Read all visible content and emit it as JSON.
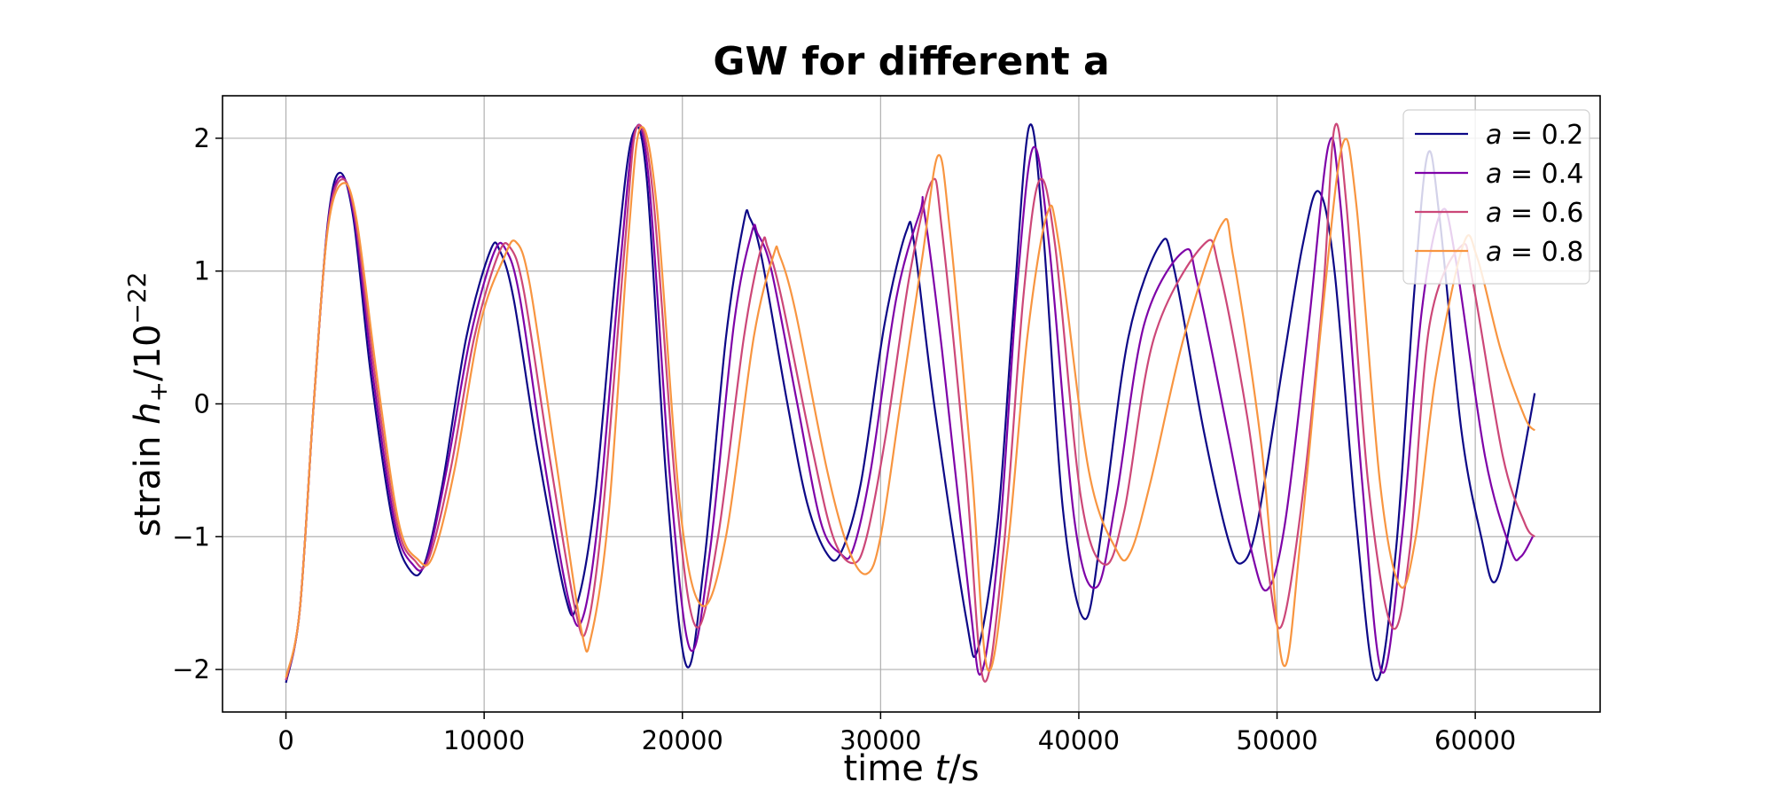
{
  "chart_data": {
    "type": "line",
    "title": "GW for different a",
    "xlabel_prefix": "time ",
    "xlabel_var": "t",
    "xlabel_suffix": "/s",
    "ylabel_prefix": "strain ",
    "ylabel_var": "h",
    "ylabel_sub": "+",
    "ylabel_suffix": "/10",
    "ylabel_exp": "−22",
    "xlim": [
      -3200,
      66300
    ],
    "ylim": [
      -2.32,
      2.32
    ],
    "xticks": [
      0,
      10000,
      20000,
      30000,
      40000,
      50000,
      60000
    ],
    "yticks": [
      2,
      1,
      0,
      -1,
      -2
    ],
    "ytick_labels": [
      "2",
      "1",
      "0",
      "−1",
      "−2"
    ],
    "grid": true,
    "legend_position": "top-right",
    "series": [
      {
        "legend_var": "a",
        "legend_value": "= 0.2",
        "color": "#0d0887",
        "points": [
          [
            0,
            -2.1
          ],
          [
            700,
            -1.55
          ],
          [
            1400,
            0
          ],
          [
            2100,
            1.35
          ],
          [
            2700,
            1.74
          ],
          [
            3400,
            1.4
          ],
          [
            4300,
            0.2
          ],
          [
            5400,
            -0.9
          ],
          [
            6300,
            -1.26
          ],
          [
            7000,
            -1.2
          ],
          [
            7900,
            -0.6
          ],
          [
            9100,
            0.5
          ],
          [
            10300,
            1.15
          ],
          [
            10800,
            1.15
          ],
          [
            11500,
            0.78
          ],
          [
            12700,
            -0.35
          ],
          [
            14100,
            -1.45
          ],
          [
            14700,
            -1.5
          ],
          [
            15600,
            -0.7
          ],
          [
            16700,
            1.1
          ],
          [
            17500,
            2.03
          ],
          [
            18200,
            1.7
          ],
          [
            19200,
            -0.6
          ],
          [
            20200,
            -1.97
          ],
          [
            21100,
            -1.2
          ],
          [
            22200,
            0.5
          ],
          [
            23100,
            1.37
          ],
          [
            23400,
            1.4
          ],
          [
            24000,
            1.1
          ],
          [
            25300,
            0.0
          ],
          [
            26300,
            -0.75
          ],
          [
            27300,
            -1.13
          ],
          [
            28000,
            -1.12
          ],
          [
            29000,
            -0.6
          ],
          [
            30200,
            0.6
          ],
          [
            31300,
            1.3
          ],
          [
            31700,
            1.2
          ],
          [
            32700,
            0.0
          ],
          [
            34300,
            -1.6
          ],
          [
            34900,
            -1.85
          ],
          [
            35900,
            -0.9
          ],
          [
            36700,
            0.7
          ],
          [
            37500,
            2.09
          ],
          [
            38200,
            1.3
          ],
          [
            39200,
            -0.8
          ],
          [
            40300,
            -1.62
          ],
          [
            41200,
            -0.9
          ],
          [
            42500,
            0.5
          ],
          [
            44100,
            1.2
          ],
          [
            44800,
            1.02
          ],
          [
            46300,
            -0.2
          ],
          [
            47500,
            -1.0
          ],
          [
            48200,
            -1.2
          ],
          [
            49000,
            -0.9
          ],
          [
            50300,
            0.3
          ],
          [
            51300,
            1.2
          ],
          [
            52100,
            1.6
          ],
          [
            52900,
            1.0
          ],
          [
            54000,
            -0.9
          ],
          [
            55000,
            -2.08
          ],
          [
            56000,
            -1.1
          ],
          [
            56900,
            0.8
          ],
          [
            57600,
            1.88
          ],
          [
            58200,
            1.4
          ],
          [
            59300,
            -0.2
          ],
          [
            60300,
            -1.0
          ],
          [
            61000,
            -1.34
          ],
          [
            61900,
            -0.8
          ],
          [
            63000,
            0.08
          ]
        ]
      },
      {
        "legend_var": "a",
        "legend_value": "= 0.4",
        "color": "#7e03a8",
        "points": [
          [
            0,
            -2.08
          ],
          [
            700,
            -1.55
          ],
          [
            1400,
            0
          ],
          [
            2100,
            1.33
          ],
          [
            2750,
            1.71
          ],
          [
            3450,
            1.4
          ],
          [
            4400,
            0.2
          ],
          [
            5500,
            -0.9
          ],
          [
            6400,
            -1.21
          ],
          [
            7100,
            -1.18
          ],
          [
            8100,
            -0.5
          ],
          [
            9300,
            0.5
          ],
          [
            10500,
            1.14
          ],
          [
            11100,
            1.16
          ],
          [
            11800,
            0.8
          ],
          [
            13000,
            -0.4
          ],
          [
            14300,
            -1.5
          ],
          [
            15000,
            -1.6
          ],
          [
            15800,
            -0.8
          ],
          [
            16900,
            1.1
          ],
          [
            17600,
            2.05
          ],
          [
            18300,
            1.7
          ],
          [
            19400,
            -0.6
          ],
          [
            20400,
            -1.85
          ],
          [
            21400,
            -1.1
          ],
          [
            22600,
            0.6
          ],
          [
            23500,
            1.29
          ],
          [
            23800,
            1.28
          ],
          [
            24500,
            1.0
          ],
          [
            25800,
            0.0
          ],
          [
            27000,
            -0.9
          ],
          [
            28000,
            -1.13
          ],
          [
            28600,
            -1.1
          ],
          [
            29500,
            -0.5
          ],
          [
            30800,
            0.8
          ],
          [
            32000,
            1.45
          ],
          [
            32200,
            1.45
          ],
          [
            33100,
            0.4
          ],
          [
            34500,
            -1.5
          ],
          [
            35100,
            -2.02
          ],
          [
            36000,
            -1.0
          ],
          [
            36900,
            0.9
          ],
          [
            37700,
            1.93
          ],
          [
            38500,
            1.2
          ],
          [
            39800,
            -0.9
          ],
          [
            40900,
            -1.38
          ],
          [
            41900,
            -0.7
          ],
          [
            43300,
            0.6
          ],
          [
            45300,
            1.15
          ],
          [
            46000,
            0.9
          ],
          [
            47500,
            -0.2
          ],
          [
            48700,
            -1.1
          ],
          [
            49500,
            -1.4
          ],
          [
            50400,
            -0.9
          ],
          [
            51600,
            0.6
          ],
          [
            52600,
            1.95
          ],
          [
            53200,
            1.5
          ],
          [
            54300,
            -0.6
          ],
          [
            55300,
            -2.02
          ],
          [
            56300,
            -1.0
          ],
          [
            57300,
            0.7
          ],
          [
            58300,
            1.45
          ],
          [
            59000,
            1.1
          ],
          [
            60500,
            -0.4
          ],
          [
            61800,
            -1.1
          ],
          [
            62300,
            -1.15
          ],
          [
            62900,
            -1.0
          ]
        ]
      },
      {
        "legend_var": "a",
        "legend_value": "= 0.6",
        "color": "#cc4778",
        "points": [
          [
            0,
            -2.08
          ],
          [
            700,
            -1.55
          ],
          [
            1400,
            0
          ],
          [
            2100,
            1.32
          ],
          [
            2800,
            1.69
          ],
          [
            3500,
            1.4
          ],
          [
            4500,
            0.2
          ],
          [
            5600,
            -0.9
          ],
          [
            6500,
            -1.18
          ],
          [
            7200,
            -1.17
          ],
          [
            8300,
            -0.5
          ],
          [
            9500,
            0.5
          ],
          [
            10700,
            1.12
          ],
          [
            11300,
            1.18
          ],
          [
            12000,
            0.85
          ],
          [
            13300,
            -0.4
          ],
          [
            14600,
            -1.55
          ],
          [
            15200,
            -1.68
          ],
          [
            16000,
            -0.8
          ],
          [
            17100,
            1.2
          ],
          [
            17700,
            2.08
          ],
          [
            18500,
            1.6
          ],
          [
            19700,
            -0.7
          ],
          [
            20700,
            -1.68
          ],
          [
            21800,
            -1.0
          ],
          [
            23100,
            0.5
          ],
          [
            24000,
            1.19
          ],
          [
            24300,
            1.18
          ],
          [
            25000,
            0.8
          ],
          [
            26500,
            -0.3
          ],
          [
            27600,
            -1.0
          ],
          [
            28600,
            -1.2
          ],
          [
            29300,
            -1.0
          ],
          [
            30300,
            -0.2
          ],
          [
            31500,
            1.0
          ],
          [
            32600,
            1.68
          ],
          [
            33100,
            1.3
          ],
          [
            34300,
            -0.5
          ],
          [
            35200,
            -2.08
          ],
          [
            36200,
            -1.1
          ],
          [
            37200,
            0.8
          ],
          [
            38000,
            1.68
          ],
          [
            38800,
            1.2
          ],
          [
            40100,
            -0.7
          ],
          [
            41300,
            -1.21
          ],
          [
            42300,
            -0.8
          ],
          [
            43800,
            0.5
          ],
          [
            46300,
            1.2
          ],
          [
            47100,
            1.0
          ],
          [
            48500,
            -0.1
          ],
          [
            49500,
            -1.2
          ],
          [
            50200,
            -1.68
          ],
          [
            51200,
            -0.8
          ],
          [
            52300,
            0.8
          ],
          [
            52900,
            2.08
          ],
          [
            53500,
            1.5
          ],
          [
            54600,
            -0.6
          ],
          [
            55800,
            -1.68
          ],
          [
            56700,
            -1.1
          ],
          [
            57700,
            0.6
          ],
          [
            59300,
            1.19
          ],
          [
            59900,
            0.9
          ],
          [
            61400,
            -0.4
          ],
          [
            62500,
            -0.9
          ],
          [
            63000,
            -1.0
          ]
        ]
      },
      {
        "legend_var": "a",
        "legend_value": "= 0.8",
        "color": "#f89540",
        "points": [
          [
            0,
            -2.06
          ],
          [
            700,
            -1.55
          ],
          [
            1400,
            0
          ],
          [
            2100,
            1.3
          ],
          [
            2850,
            1.66
          ],
          [
            3550,
            1.4
          ],
          [
            4600,
            0.2
          ],
          [
            5700,
            -0.9
          ],
          [
            6650,
            -1.17
          ],
          [
            7400,
            -1.15
          ],
          [
            8500,
            -0.5
          ],
          [
            9800,
            0.6
          ],
          [
            11000,
            1.1
          ],
          [
            11600,
            1.22
          ],
          [
            12300,
            0.9
          ],
          [
            13600,
            -0.4
          ],
          [
            14900,
            -1.7
          ],
          [
            15400,
            -1.75
          ],
          [
            16300,
            -0.8
          ],
          [
            17300,
            1.3
          ],
          [
            17900,
            2.08
          ],
          [
            18700,
            1.5
          ],
          [
            19900,
            -0.8
          ],
          [
            21000,
            -1.52
          ],
          [
            22200,
            -1.0
          ],
          [
            23600,
            0.5
          ],
          [
            24600,
            1.12
          ],
          [
            24900,
            1.12
          ],
          [
            25700,
            0.7
          ],
          [
            27300,
            -0.5
          ],
          [
            28400,
            -1.1
          ],
          [
            29300,
            -1.28
          ],
          [
            30000,
            -1.0
          ],
          [
            31000,
            0.0
          ],
          [
            32100,
            1.1
          ],
          [
            32900,
            1.87
          ],
          [
            33500,
            1.3
          ],
          [
            34600,
            -0.5
          ],
          [
            35400,
            -2.0
          ],
          [
            36400,
            -1.1
          ],
          [
            37400,
            0.5
          ],
          [
            38400,
            1.43
          ],
          [
            39000,
            1.2
          ],
          [
            40500,
            -0.5
          ],
          [
            41900,
            -1.1
          ],
          [
            42600,
            -1.12
          ],
          [
            43600,
            -0.6
          ],
          [
            45300,
            0.5
          ],
          [
            47200,
            1.35
          ],
          [
            47800,
            1.1
          ],
          [
            49200,
            -0.3
          ],
          [
            50300,
            -1.96
          ],
          [
            51200,
            -1.0
          ],
          [
            52300,
            0.7
          ],
          [
            53300,
            1.95
          ],
          [
            54000,
            1.5
          ],
          [
            55200,
            -0.6
          ],
          [
            56200,
            -1.37
          ],
          [
            57000,
            -1.0
          ],
          [
            58000,
            0.2
          ],
          [
            59400,
            1.2
          ],
          [
            60100,
            1.1
          ],
          [
            61300,
            0.4
          ],
          [
            62500,
            -0.1
          ],
          [
            63000,
            -0.2
          ]
        ]
      }
    ]
  }
}
